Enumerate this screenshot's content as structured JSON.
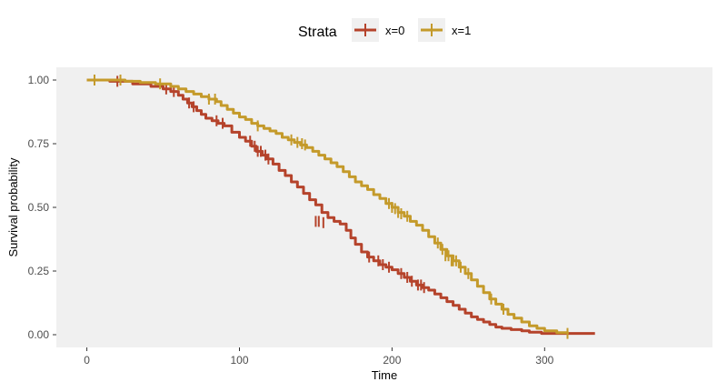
{
  "chart_data": {
    "type": "line",
    "subtype": "kaplan-meier survival curve",
    "xlabel": "Time",
    "ylabel": "Survival probability",
    "xlim": [
      -20,
      410
    ],
    "ylim": [
      -0.05,
      1.05
    ],
    "x_ticks": [
      0,
      100,
      200,
      300
    ],
    "y_ticks": [
      0.0,
      0.25,
      0.5,
      0.75,
      1.0
    ],
    "y_tick_labels": [
      "0.00",
      "0.25",
      "0.50",
      "0.75",
      "1.00"
    ],
    "grid": false,
    "legend": {
      "title": "Strata",
      "position": "top",
      "entries": [
        "x=0",
        "x=1"
      ]
    },
    "colors": {
      "panel_background": "#f0f0f0",
      "x=0": "#b5432b",
      "x=1": "#c49a2a"
    },
    "series": [
      {
        "name": "x=0",
        "color": "#b5432b",
        "steps": [
          [
            0,
            1.0
          ],
          [
            15,
            0.995
          ],
          [
            30,
            0.985
          ],
          [
            42,
            0.975
          ],
          [
            50,
            0.965
          ],
          [
            55,
            0.955
          ],
          [
            60,
            0.94
          ],
          [
            63,
            0.925
          ],
          [
            66,
            0.91
          ],
          [
            69,
            0.895
          ],
          [
            72,
            0.88
          ],
          [
            75,
            0.865
          ],
          [
            78,
            0.85
          ],
          [
            82,
            0.84
          ],
          [
            86,
            0.83
          ],
          [
            90,
            0.82
          ],
          [
            95,
            0.795
          ],
          [
            100,
            0.775
          ],
          [
            104,
            0.76
          ],
          [
            108,
            0.74
          ],
          [
            111,
            0.72
          ],
          [
            115,
            0.705
          ],
          [
            118,
            0.69
          ],
          [
            122,
            0.67
          ],
          [
            126,
            0.645
          ],
          [
            130,
            0.625
          ],
          [
            134,
            0.6
          ],
          [
            138,
            0.58
          ],
          [
            142,
            0.555
          ],
          [
            146,
            0.53
          ],
          [
            150,
            0.51
          ],
          [
            154,
            0.48
          ],
          [
            158,
            0.46
          ],
          [
            162,
            0.445
          ],
          [
            166,
            0.435
          ],
          [
            170,
            0.41
          ],
          [
            173,
            0.38
          ],
          [
            176,
            0.355
          ],
          [
            180,
            0.325
          ],
          [
            184,
            0.305
          ],
          [
            188,
            0.29
          ],
          [
            192,
            0.275
          ],
          [
            196,
            0.265
          ],
          [
            200,
            0.255
          ],
          [
            204,
            0.24
          ],
          [
            208,
            0.225
          ],
          [
            212,
            0.21
          ],
          [
            216,
            0.195
          ],
          [
            220,
            0.185
          ],
          [
            224,
            0.175
          ],
          [
            228,
            0.16
          ],
          [
            232,
            0.145
          ],
          [
            236,
            0.13
          ],
          [
            240,
            0.115
          ],
          [
            244,
            0.1
          ],
          [
            248,
            0.085
          ],
          [
            252,
            0.07
          ],
          [
            256,
            0.06
          ],
          [
            260,
            0.05
          ],
          [
            264,
            0.04
          ],
          [
            268,
            0.03
          ],
          [
            272,
            0.025
          ],
          [
            278,
            0.02
          ],
          [
            285,
            0.015
          ],
          [
            290,
            0.01
          ],
          [
            298,
            0.005
          ],
          [
            333,
            0.005
          ]
        ],
        "censored": [
          [
            20,
            0.995
          ],
          [
            52,
            0.965
          ],
          [
            57,
            0.955
          ],
          [
            67,
            0.91
          ],
          [
            70,
            0.895
          ],
          [
            85,
            0.84
          ],
          [
            89,
            0.83
          ],
          [
            107,
            0.76
          ],
          [
            110,
            0.74
          ],
          [
            112,
            0.72
          ],
          [
            114,
            0.72
          ],
          [
            117,
            0.705
          ],
          [
            119,
            0.69
          ],
          [
            150,
            0.445
          ],
          [
            152,
            0.445
          ],
          [
            155,
            0.44
          ],
          [
            185,
            0.305
          ],
          [
            191,
            0.29
          ],
          [
            194,
            0.275
          ],
          [
            198,
            0.265
          ],
          [
            206,
            0.24
          ],
          [
            210,
            0.225
          ],
          [
            213,
            0.21
          ],
          [
            217,
            0.195
          ],
          [
            219,
            0.195
          ],
          [
            221,
            0.185
          ]
        ]
      },
      {
        "name": "x=1",
        "color": "#c49a2a",
        "steps": [
          [
            0,
            1.0
          ],
          [
            25,
            0.995
          ],
          [
            35,
            0.99
          ],
          [
            45,
            0.985
          ],
          [
            55,
            0.975
          ],
          [
            60,
            0.965
          ],
          [
            65,
            0.955
          ],
          [
            70,
            0.945
          ],
          [
            75,
            0.935
          ],
          [
            80,
            0.925
          ],
          [
            85,
            0.915
          ],
          [
            88,
            0.9
          ],
          [
            92,
            0.885
          ],
          [
            96,
            0.87
          ],
          [
            100,
            0.855
          ],
          [
            104,
            0.845
          ],
          [
            108,
            0.83
          ],
          [
            112,
            0.82
          ],
          [
            116,
            0.81
          ],
          [
            120,
            0.8
          ],
          [
            124,
            0.79
          ],
          [
            128,
            0.775
          ],
          [
            132,
            0.765
          ],
          [
            136,
            0.755
          ],
          [
            140,
            0.745
          ],
          [
            144,
            0.735
          ],
          [
            148,
            0.72
          ],
          [
            152,
            0.705
          ],
          [
            156,
            0.69
          ],
          [
            160,
            0.675
          ],
          [
            164,
            0.66
          ],
          [
            168,
            0.64
          ],
          [
            172,
            0.62
          ],
          [
            176,
            0.6
          ],
          [
            180,
            0.585
          ],
          [
            184,
            0.57
          ],
          [
            188,
            0.55
          ],
          [
            192,
            0.535
          ],
          [
            196,
            0.515
          ],
          [
            200,
            0.5
          ],
          [
            204,
            0.48
          ],
          [
            208,
            0.465
          ],
          [
            212,
            0.445
          ],
          [
            216,
            0.43
          ],
          [
            220,
            0.41
          ],
          [
            224,
            0.385
          ],
          [
            228,
            0.36
          ],
          [
            232,
            0.335
          ],
          [
            236,
            0.31
          ],
          [
            240,
            0.29
          ],
          [
            244,
            0.265
          ],
          [
            248,
            0.24
          ],
          [
            252,
            0.215
          ],
          [
            256,
            0.19
          ],
          [
            260,
            0.165
          ],
          [
            264,
            0.14
          ],
          [
            268,
            0.12
          ],
          [
            272,
            0.1
          ],
          [
            276,
            0.08
          ],
          [
            280,
            0.065
          ],
          [
            285,
            0.05
          ],
          [
            290,
            0.035
          ],
          [
            295,
            0.025
          ],
          [
            300,
            0.015
          ],
          [
            308,
            0.008
          ],
          [
            315,
            0.005
          ]
        ],
        "censored": [
          [
            5,
            1.0
          ],
          [
            22,
            1.0
          ],
          [
            48,
            0.985
          ],
          [
            80,
            0.925
          ],
          [
            84,
            0.925
          ],
          [
            112,
            0.82
          ],
          [
            134,
            0.765
          ],
          [
            138,
            0.755
          ],
          [
            141,
            0.75
          ],
          [
            143,
            0.745
          ],
          [
            198,
            0.515
          ],
          [
            200,
            0.5
          ],
          [
            202,
            0.495
          ],
          [
            204,
            0.48
          ],
          [
            206,
            0.475
          ],
          [
            210,
            0.465
          ],
          [
            230,
            0.36
          ],
          [
            233,
            0.335
          ],
          [
            235,
            0.31
          ],
          [
            237,
            0.31
          ],
          [
            239,
            0.29
          ],
          [
            240,
            0.29
          ],
          [
            242,
            0.29
          ],
          [
            245,
            0.265
          ],
          [
            250,
            0.24
          ],
          [
            265,
            0.14
          ],
          [
            273,
            0.1
          ],
          [
            315,
            0.005
          ]
        ]
      }
    ]
  }
}
